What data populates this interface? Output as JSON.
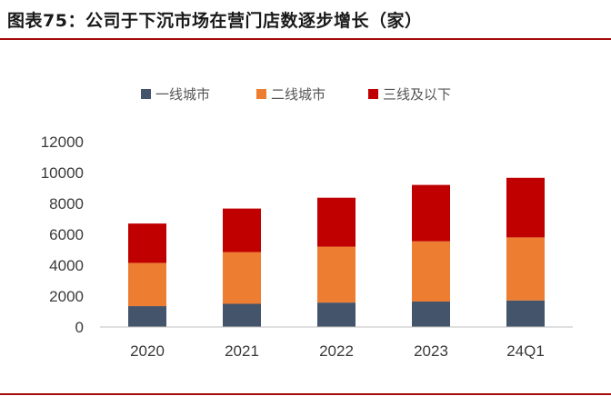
{
  "figure_title": "图表75：公司于下沉市场在营门店数逐步增长（家）",
  "chart_data": {
    "type": "bar",
    "stacked": true,
    "title": "",
    "xlabel": "",
    "ylabel": "",
    "categories": [
      "2020",
      "2021",
      "2022",
      "2023",
      "24Q1"
    ],
    "ylim": [
      0,
      12000
    ],
    "yticks": [
      0,
      2000,
      4000,
      6000,
      8000,
      10000,
      12000
    ],
    "legend_position": "top-center",
    "grid": false,
    "series": [
      {
        "name": "一线城市",
        "color": "#44546a",
        "values": [
          1350,
          1500,
          1580,
          1650,
          1720
        ]
      },
      {
        "name": "二线城市",
        "color": "#ed7d31",
        "values": [
          2800,
          3350,
          3620,
          3900,
          4080
        ]
      },
      {
        "name": "三线及以下",
        "color": "#c00000",
        "values": [
          2550,
          2820,
          3170,
          3650,
          3860
        ]
      }
    ]
  }
}
